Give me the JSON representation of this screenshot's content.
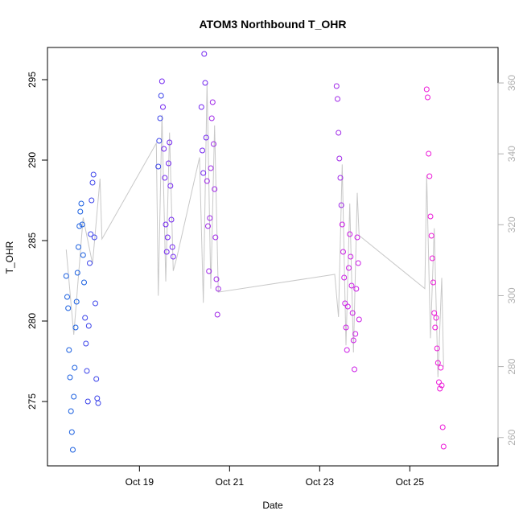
{
  "chart_data": {
    "type": "scatter",
    "title": "ATOM3 Northbound T_OHR",
    "xlabel": "Date",
    "ylabel": "T_OHR",
    "x_range": [
      "2024-10-16T23:00",
      "2024-10-26T23:00"
    ],
    "ylim": [
      271,
      297
    ],
    "y2lim": [
      252,
      370
    ],
    "x_ticks": [
      {
        "label": "Oct 19",
        "at": "2024-10-19T00:00"
      },
      {
        "label": "Oct 21",
        "at": "2024-10-21T00:00"
      },
      {
        "label": "Oct 23",
        "at": "2024-10-23T00:00"
      },
      {
        "label": "Oct 25",
        "at": "2024-10-25T00:00"
      }
    ],
    "y_ticks": [
      "275",
      "280",
      "285",
      "290",
      "295"
    ],
    "y2_ticks": [
      "260",
      "280",
      "300",
      "320",
      "340",
      "360"
    ],
    "point_colors": [
      "#1a5fe0",
      "#3c44ea",
      "#7326f0",
      "#a029e8",
      "#cc1ee6",
      "#ec19d8"
    ],
    "line_color": "#c8c8c8",
    "secondary_axis_color": "#b0b0b0",
    "grid": false,
    "legend": "none",
    "series": [
      {
        "points": [
          {
            "t": "2024-10-17T09:00",
            "y": 282.8
          },
          {
            "t": "2024-10-17T09:30",
            "y": 281.5
          },
          {
            "t": "2024-10-17T10:00",
            "y": 280.8
          },
          {
            "t": "2024-10-17T10:30",
            "y": 278.2
          },
          {
            "t": "2024-10-17T11:00",
            "y": 276.5
          },
          {
            "t": "2024-10-17T11:30",
            "y": 274.4
          },
          {
            "t": "2024-10-17T12:00",
            "y": 273.1
          },
          {
            "t": "2024-10-17T12:30",
            "y": 272.0
          },
          {
            "t": "2024-10-17T13:00",
            "y": 275.3
          },
          {
            "t": "2024-10-17T13:30",
            "y": 277.1
          },
          {
            "t": "2024-10-17T14:00",
            "y": 279.6
          },
          {
            "t": "2024-10-17T14:30",
            "y": 281.2
          },
          {
            "t": "2024-10-17T15:00",
            "y": 283.0
          },
          {
            "t": "2024-10-17T15:30",
            "y": 284.6
          },
          {
            "t": "2024-10-17T16:00",
            "y": 285.9
          },
          {
            "t": "2024-10-17T16:30",
            "y": 286.8
          },
          {
            "t": "2024-10-17T17:00",
            "y": 287.3
          },
          {
            "t": "2024-10-17T17:30",
            "y": 286.0
          },
          {
            "t": "2024-10-17T18:00",
            "y": 284.1
          },
          {
            "t": "2024-10-17T18:30",
            "y": 282.4
          },
          {
            "t": "2024-10-17T19:00",
            "y": 280.2
          },
          {
            "t": "2024-10-17T19:30",
            "y": 278.6
          },
          {
            "t": "2024-10-17T20:00",
            "y": 276.9
          },
          {
            "t": "2024-10-17T20:30",
            "y": 275.0
          },
          {
            "t": "2024-10-17T21:00",
            "y": 279.7
          },
          {
            "t": "2024-10-17T21:30",
            "y": 283.6
          },
          {
            "t": "2024-10-17T22:00",
            "y": 285.4
          },
          {
            "t": "2024-10-17T22:30",
            "y": 287.5
          },
          {
            "t": "2024-10-17T23:00",
            "y": 288.6
          },
          {
            "t": "2024-10-17T23:30",
            "y": 289.1
          },
          {
            "t": "2024-10-18T00:00",
            "y": 285.2
          },
          {
            "t": "2024-10-18T00:30",
            "y": 281.1
          },
          {
            "t": "2024-10-18T01:00",
            "y": 276.4
          },
          {
            "t": "2024-10-18T01:30",
            "y": 275.2
          },
          {
            "t": "2024-10-18T02:00",
            "y": 274.9
          }
        ]
      },
      {
        "points": [
          {
            "t": "2024-10-19T10:00",
            "y": 289.6
          },
          {
            "t": "2024-10-19T10:30",
            "y": 291.2
          },
          {
            "t": "2024-10-19T11:00",
            "y": 292.6
          },
          {
            "t": "2024-10-19T11:30",
            "y": 294.0
          },
          {
            "t": "2024-10-19T12:00",
            "y": 294.9
          },
          {
            "t": "2024-10-19T12:30",
            "y": 293.3
          },
          {
            "t": "2024-10-19T13:00",
            "y": 290.7
          },
          {
            "t": "2024-10-19T13:30",
            "y": 288.9
          },
          {
            "t": "2024-10-19T14:00",
            "y": 286.0
          },
          {
            "t": "2024-10-19T14:30",
            "y": 284.3
          },
          {
            "t": "2024-10-19T15:00",
            "y": 285.2
          },
          {
            "t": "2024-10-19T15:30",
            "y": 289.8
          },
          {
            "t": "2024-10-19T16:00",
            "y": 291.1
          },
          {
            "t": "2024-10-19T16:30",
            "y": 288.4
          },
          {
            "t": "2024-10-19T17:00",
            "y": 286.3
          },
          {
            "t": "2024-10-19T17:30",
            "y": 284.6
          },
          {
            "t": "2024-10-19T18:00",
            "y": 284.0
          }
        ]
      },
      {
        "points": [
          {
            "t": "2024-10-20T09:00",
            "y": 293.3
          },
          {
            "t": "2024-10-20T09:30",
            "y": 290.6
          },
          {
            "t": "2024-10-20T10:00",
            "y": 289.2
          },
          {
            "t": "2024-10-20T10:30",
            "y": 296.6
          },
          {
            "t": "2024-10-20T11:00",
            "y": 294.8
          },
          {
            "t": "2024-10-20T11:30",
            "y": 291.4
          },
          {
            "t": "2024-10-20T12:00",
            "y": 288.7
          },
          {
            "t": "2024-10-20T12:30",
            "y": 285.9
          },
          {
            "t": "2024-10-20T13:00",
            "y": 283.1
          },
          {
            "t": "2024-10-20T13:30",
            "y": 286.4
          },
          {
            "t": "2024-10-20T14:00",
            "y": 289.5
          },
          {
            "t": "2024-10-20T14:30",
            "y": 292.6
          },
          {
            "t": "2024-10-20T15:00",
            "y": 293.6
          },
          {
            "t": "2024-10-20T15:30",
            "y": 291.0
          },
          {
            "t": "2024-10-20T16:00",
            "y": 288.2
          },
          {
            "t": "2024-10-20T16:30",
            "y": 285.2
          },
          {
            "t": "2024-10-20T17:00",
            "y": 282.6
          },
          {
            "t": "2024-10-20T17:30",
            "y": 280.4
          },
          {
            "t": "2024-10-20T18:00",
            "y": 282.0
          }
        ]
      },
      {
        "points": [
          {
            "t": "2024-10-23T09:00",
            "y": 294.6
          },
          {
            "t": "2024-10-23T09:30",
            "y": 293.8
          },
          {
            "t": "2024-10-23T10:00",
            "y": 291.7
          },
          {
            "t": "2024-10-23T10:30",
            "y": 290.1
          },
          {
            "t": "2024-10-23T11:00",
            "y": 288.9
          },
          {
            "t": "2024-10-23T11:30",
            "y": 287.2
          },
          {
            "t": "2024-10-23T12:00",
            "y": 286.0
          },
          {
            "t": "2024-10-23T12:30",
            "y": 284.3
          },
          {
            "t": "2024-10-23T13:00",
            "y": 282.7
          },
          {
            "t": "2024-10-23T13:30",
            "y": 281.1
          },
          {
            "t": "2024-10-23T14:00",
            "y": 279.6
          },
          {
            "t": "2024-10-23T14:30",
            "y": 278.2
          },
          {
            "t": "2024-10-23T15:00",
            "y": 280.9
          },
          {
            "t": "2024-10-23T15:30",
            "y": 283.3
          },
          {
            "t": "2024-10-23T16:00",
            "y": 285.4
          },
          {
            "t": "2024-10-23T16:30",
            "y": 284.0
          },
          {
            "t": "2024-10-23T17:00",
            "y": 282.2
          },
          {
            "t": "2024-10-23T17:30",
            "y": 280.5
          },
          {
            "t": "2024-10-23T18:00",
            "y": 278.8
          },
          {
            "t": "2024-10-23T18:30",
            "y": 277.0
          },
          {
            "t": "2024-10-23T19:00",
            "y": 279.2
          },
          {
            "t": "2024-10-23T19:30",
            "y": 282.0
          },
          {
            "t": "2024-10-23T20:00",
            "y": 285.2
          },
          {
            "t": "2024-10-23T20:30",
            "y": 283.6
          },
          {
            "t": "2024-10-23T21:00",
            "y": 280.1
          }
        ]
      },
      {
        "points": [
          {
            "t": "2024-10-25T09:00",
            "y": 294.4
          },
          {
            "t": "2024-10-25T09:30",
            "y": 293.9
          },
          {
            "t": "2024-10-25T10:00",
            "y": 290.4
          },
          {
            "t": "2024-10-25T10:30",
            "y": 289.0
          },
          {
            "t": "2024-10-25T11:00",
            "y": 286.5
          },
          {
            "t": "2024-10-25T11:30",
            "y": 285.3
          },
          {
            "t": "2024-10-25T12:00",
            "y": 283.9
          },
          {
            "t": "2024-10-25T12:30",
            "y": 282.4
          },
          {
            "t": "2024-10-25T13:00",
            "y": 280.5
          },
          {
            "t": "2024-10-25T13:30",
            "y": 279.6
          },
          {
            "t": "2024-10-25T14:00",
            "y": 280.2
          },
          {
            "t": "2024-10-25T14:30",
            "y": 278.3
          },
          {
            "t": "2024-10-25T15:00",
            "y": 277.4
          },
          {
            "t": "2024-10-25T15:30",
            "y": 276.2
          },
          {
            "t": "2024-10-25T16:00",
            "y": 275.8
          },
          {
            "t": "2024-10-25T16:30",
            "y": 277.1
          },
          {
            "t": "2024-10-25T17:00",
            "y": 276.0
          },
          {
            "t": "2024-10-25T17:30",
            "y": 273.4
          },
          {
            "t": "2024-10-25T18:00",
            "y": 272.2
          }
        ]
      }
    ],
    "line_series": [
      {
        "t": "2024-10-17T09:00",
        "y2": 313
      },
      {
        "t": "2024-10-17T13:00",
        "y2": 289
      },
      {
        "t": "2024-10-17T18:00",
        "y2": 322
      },
      {
        "t": "2024-10-17T23:00",
        "y2": 309
      },
      {
        "t": "2024-10-18T03:00",
        "y2": 333
      },
      {
        "t": "2024-10-18T04:00",
        "y2": 316
      },
      {
        "t": "2024-10-19T09:00",
        "y2": 343
      },
      {
        "t": "2024-10-19T10:00",
        "y2": 300
      },
      {
        "t": "2024-10-19T12:00",
        "y2": 351
      },
      {
        "t": "2024-10-19T14:00",
        "y2": 304
      },
      {
        "t": "2024-10-19T16:00",
        "y2": 346
      },
      {
        "t": "2024-10-19T18:00",
        "y2": 307
      },
      {
        "t": "2024-10-19T20:00",
        "y2": 311
      },
      {
        "t": "2024-10-20T08:00",
        "y2": 339
      },
      {
        "t": "2024-10-20T10:00",
        "y2": 298
      },
      {
        "t": "2024-10-20T12:00",
        "y2": 360
      },
      {
        "t": "2024-10-20T14:00",
        "y2": 302
      },
      {
        "t": "2024-10-20T16:00",
        "y2": 348
      },
      {
        "t": "2024-10-20T18:00",
        "y2": 301
      },
      {
        "t": "2024-10-23T08:00",
        "y2": 306
      },
      {
        "t": "2024-10-23T10:00",
        "y2": 294
      },
      {
        "t": "2024-10-23T12:00",
        "y2": 337
      },
      {
        "t": "2024-10-23T14:00",
        "y2": 286
      },
      {
        "t": "2024-10-23T16:00",
        "y2": 326
      },
      {
        "t": "2024-10-23T18:00",
        "y2": 284
      },
      {
        "t": "2024-10-23T20:00",
        "y2": 329
      },
      {
        "t": "2024-10-23T21:00",
        "y2": 317
      },
      {
        "t": "2024-10-25T08:00",
        "y2": 302
      },
      {
        "t": "2024-10-25T09:00",
        "y2": 334
      },
      {
        "t": "2024-10-25T11:00",
        "y2": 288
      },
      {
        "t": "2024-10-25T13:00",
        "y2": 319
      },
      {
        "t": "2024-10-25T15:00",
        "y2": 277
      },
      {
        "t": "2024-10-25T17:00",
        "y2": 305
      },
      {
        "t": "2024-10-25T18:00",
        "y2": 280
      }
    ]
  }
}
